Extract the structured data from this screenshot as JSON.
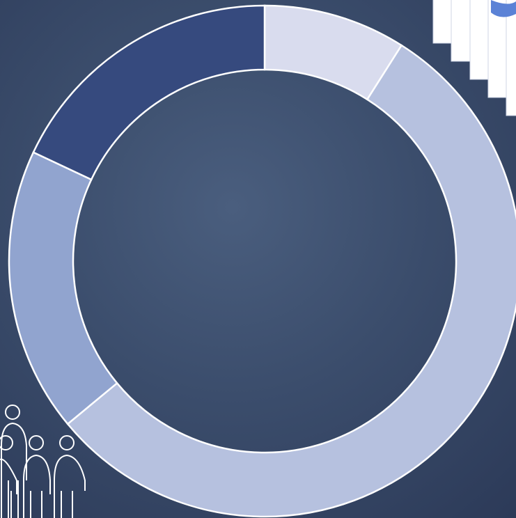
{
  "chart_data": {
    "type": "donut",
    "values": [
      9,
      55,
      18,
      18
    ],
    "colors": [
      "#d9dcee",
      "#b6c1df",
      "#91a4cf",
      "#364a7e"
    ]
  }
}
